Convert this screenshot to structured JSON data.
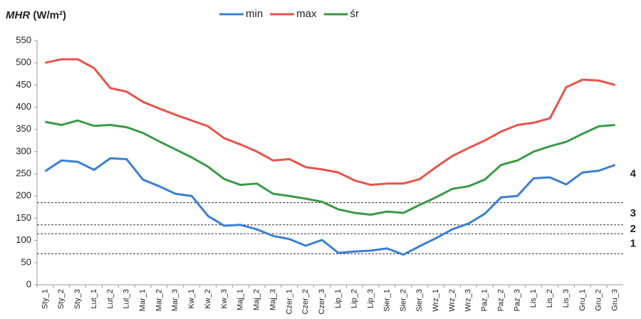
{
  "chart_data": {
    "type": "line",
    "title": "MHR",
    "title_unit": "(W/m²)",
    "categories": [
      "Sty_1",
      "Sty_2",
      "Sty_3",
      "Lut_1",
      "Lut_2",
      "Lut_3",
      "Mar_1",
      "Mar_2",
      "Mar_3",
      "Kw_1",
      "Kw_2",
      "Kw_3",
      "Maj_1",
      "Maj_2",
      "Maj_3",
      "Czer_1",
      "Czer_2",
      "Czer_3",
      "Lip_1",
      "Lip_2",
      "Lip_3",
      "Sier_1",
      "Sier_2",
      "Sier_3",
      "Wrz_1",
      "Wrz_2",
      "Wrz_3",
      "Paz_1",
      "Paz_2",
      "Paz_3",
      "Lis_1",
      "Lis_2",
      "Lis_3",
      "Gru_1",
      "Gru_2",
      "Gru_3"
    ],
    "series": [
      {
        "name": "min",
        "color": "#3a7fd5",
        "values": [
          256,
          280,
          277,
          259,
          285,
          283,
          237,
          222,
          205,
          200,
          155,
          133,
          135,
          125,
          110,
          103,
          88,
          101,
          72,
          75,
          77,
          82,
          68,
          87,
          105,
          125,
          138,
          160,
          197,
          200,
          240,
          242,
          226,
          253,
          257,
          270
        ]
      },
      {
        "name": "max",
        "color": "#e8534a",
        "values": [
          500,
          508,
          508,
          488,
          443,
          435,
          412,
          397,
          383,
          370,
          357,
          330,
          316,
          300,
          280,
          283,
          265,
          260,
          253,
          235,
          225,
          228,
          228,
          238,
          265,
          290,
          308,
          325,
          345,
          360,
          365,
          375,
          445,
          462,
          460,
          450
        ]
      },
      {
        "name": "śr",
        "color": "#3a9a47",
        "values": [
          367,
          360,
          370,
          358,
          360,
          355,
          342,
          323,
          305,
          287,
          266,
          238,
          225,
          228,
          205,
          200,
          194,
          187,
          170,
          162,
          158,
          165,
          162,
          180,
          197,
          216,
          222,
          237,
          270,
          280,
          300,
          312,
          322,
          340,
          357,
          360
        ]
      }
    ],
    "ylim": [
      0,
      550
    ],
    "yticks": [
      0,
      50,
      100,
      150,
      200,
      250,
      300,
      350,
      400,
      450,
      500,
      550
    ],
    "grid": false,
    "reference_lines": [
      70,
      115,
      135,
      185
    ],
    "zone_labels": [
      "1",
      "2",
      "3",
      "4"
    ]
  }
}
